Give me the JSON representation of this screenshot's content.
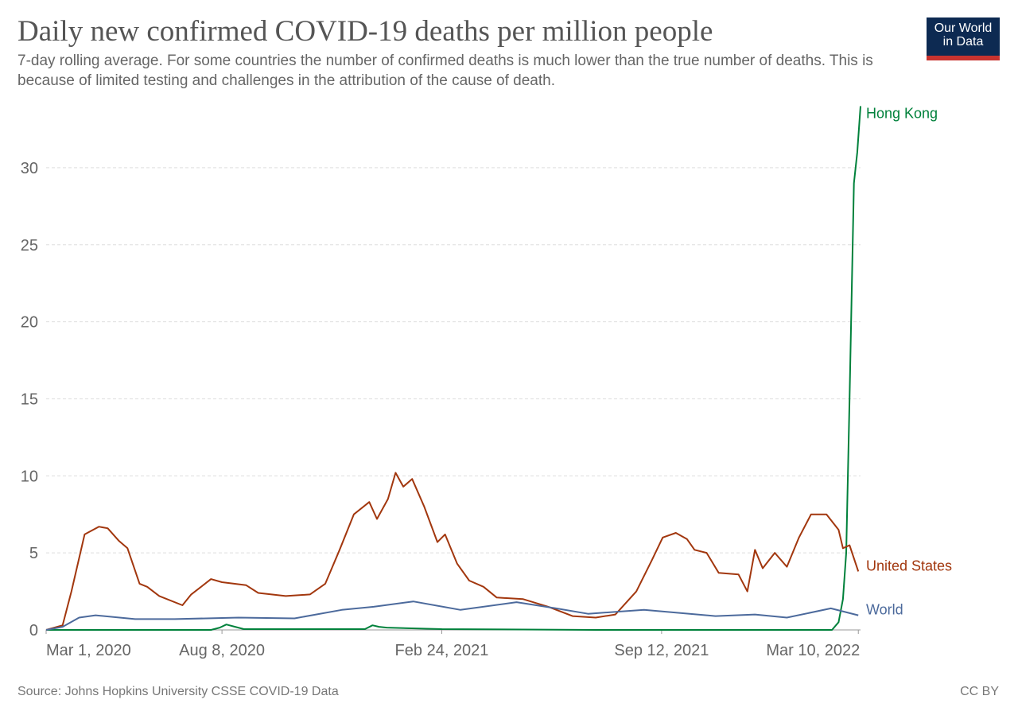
{
  "chart_data": {
    "type": "line",
    "title": "Daily new confirmed COVID-19 deaths per million people",
    "subtitle": "7-day rolling average. For some countries the number of confirmed deaths is much lower than the true number of deaths. This is because of limited testing and challenges in the attribution of the cause of death.",
    "x_unit": "days since Mar 1, 2020",
    "xlim": [
      0,
      741
    ],
    "ylim": [
      0,
      34
    ],
    "yticks": [
      0,
      5,
      10,
      15,
      20,
      25,
      30
    ],
    "xticks": [
      {
        "day": 0,
        "label": "Mar 1, 2020"
      },
      {
        "day": 160,
        "label": "Aug 8, 2020"
      },
      {
        "day": 360,
        "label": "Feb 24, 2021"
      },
      {
        "day": 560,
        "label": "Sep 12, 2021"
      },
      {
        "day": 739,
        "label": "Mar 10, 2022"
      }
    ],
    "grid": true,
    "series": [
      {
        "name": "Hong Kong",
        "color": "#00813b",
        "x": [
          0,
          150,
          158,
          164,
          172,
          180,
          290,
          297,
          303,
          310,
          360,
          500,
          715,
          721,
          725,
          728,
          731,
          735,
          738,
          741
        ],
        "y": [
          0,
          0,
          0.15,
          0.35,
          0.2,
          0.05,
          0.05,
          0.3,
          0.2,
          0.15,
          0.05,
          0,
          0,
          0.5,
          2,
          5,
          15,
          29,
          31,
          34
        ]
      },
      {
        "name": "United States",
        "color": "#a2370e",
        "x": [
          0,
          15,
          23,
          35,
          48,
          56,
          66,
          74,
          85,
          92,
          103,
          124,
          132,
          150,
          160,
          182,
          193,
          218,
          240,
          254,
          267,
          280,
          294,
          301,
          311,
          318,
          325,
          333,
          344,
          356,
          363,
          374,
          385,
          398,
          410,
          434,
          457,
          479,
          500,
          518,
          537,
          551,
          561,
          573,
          583,
          590,
          601,
          612,
          630,
          638,
          645,
          652,
          663,
          674,
          685,
          696,
          710,
          721,
          725,
          731,
          739
        ],
        "y": [
          0,
          0.3,
          2.5,
          6.2,
          6.7,
          6.6,
          5.8,
          5.3,
          3.0,
          2.8,
          2.2,
          1.6,
          2.3,
          3.3,
          3.1,
          2.9,
          2.4,
          2.2,
          2.3,
          3.0,
          5.2,
          7.5,
          8.3,
          7.2,
          8.5,
          10.2,
          9.3,
          9.8,
          8.0,
          5.7,
          6.2,
          4.3,
          3.2,
          2.8,
          2.1,
          2.0,
          1.5,
          0.9,
          0.8,
          1.0,
          2.5,
          4.5,
          6.0,
          6.3,
          5.9,
          5.2,
          5.0,
          3.7,
          3.6,
          2.5,
          5.2,
          4.0,
          5.0,
          4.1,
          6.0,
          7.5,
          7.5,
          6.5,
          5.3,
          5.5,
          3.8
        ]
      },
      {
        "name": "World",
        "color": "#4c6a9c",
        "x": [
          0,
          15,
          30,
          45,
          81,
          117,
          175,
          226,
          269,
          298,
          334,
          377,
          428,
          464,
          493,
          544,
          609,
          645,
          674,
          714,
          739
        ],
        "y": [
          0,
          0.2,
          0.8,
          0.95,
          0.7,
          0.7,
          0.8,
          0.75,
          1.3,
          1.5,
          1.85,
          1.3,
          1.8,
          1.4,
          1.05,
          1.3,
          0.9,
          1.0,
          0.8,
          1.4,
          0.95
        ]
      }
    ]
  },
  "logo": {
    "line1": "Our World",
    "line2": "in Data"
  },
  "footer": {
    "source": "Source: Johns Hopkins University CSSE COVID-19 Data",
    "license": "CC BY"
  }
}
